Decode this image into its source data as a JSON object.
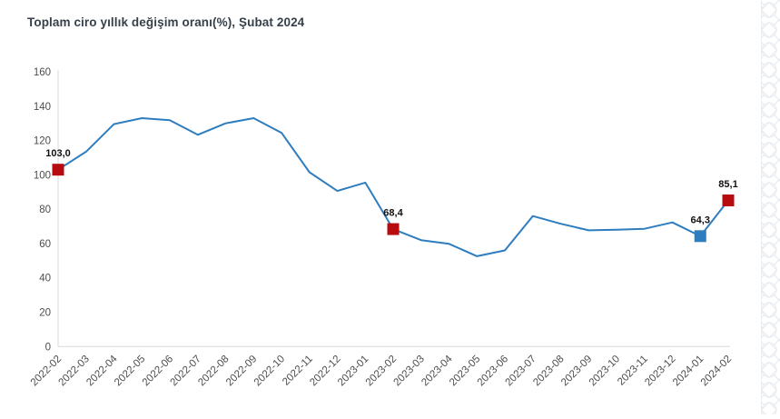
{
  "title": "Toplam ciro yıllık değişim oranı(%), Şubat 2024",
  "colors": {
    "line": "#2e7dbe",
    "marker_red": "#b60c10",
    "marker_blue": "#2e7dbe",
    "axis_line": "#d8d8d8",
    "axis_text": "#4d4d4d",
    "title_text": "#36404a",
    "data_label": "#111111",
    "pattern": "#e4e8ed"
  },
  "chart_data": {
    "type": "line",
    "title": "Toplam ciro yıllık değişim oranı(%), Şubat 2024",
    "categories": [
      "2022-02",
      "2022-03",
      "2022-04",
      "2022-05",
      "2022-06",
      "2022-07",
      "2022-08",
      "2022-09",
      "2022-10",
      "2022-11",
      "2022-12",
      "2023-01",
      "2023-02",
      "2023-03",
      "2023-04",
      "2023-05",
      "2023-06",
      "2023-07",
      "2023-08",
      "2023-09",
      "2023-10",
      "2023-11",
      "2023-12",
      "2024-01",
      "2024-02"
    ],
    "values": [
      103.0,
      113.5,
      129.5,
      133.0,
      131.8,
      123.3,
      130.0,
      133.0,
      124.5,
      101.5,
      90.6,
      95.5,
      68.4,
      62.0,
      59.8,
      52.6,
      56.0,
      76.0,
      71.5,
      67.7,
      68.0,
      68.6,
      72.3,
      64.3,
      85.1
    ],
    "labeled_points": [
      {
        "index": 0,
        "category": "2022-02",
        "label": "103,0",
        "marker": "red"
      },
      {
        "index": 12,
        "category": "2023-02",
        "label": "68,4",
        "marker": "red"
      },
      {
        "index": 23,
        "category": "2024-01",
        "label": "64,3",
        "marker": "blue"
      },
      {
        "index": 24,
        "category": "2024-02",
        "label": "85,1",
        "marker": "red"
      }
    ],
    "xlabel": "",
    "ylabel": "",
    "ylim": [
      0,
      160
    ],
    "yticks": [
      "0",
      "20",
      "40",
      "60",
      "80",
      "100",
      "120",
      "140",
      "160"
    ],
    "grid": false,
    "legend": false,
    "x_label_rotation": -45
  }
}
